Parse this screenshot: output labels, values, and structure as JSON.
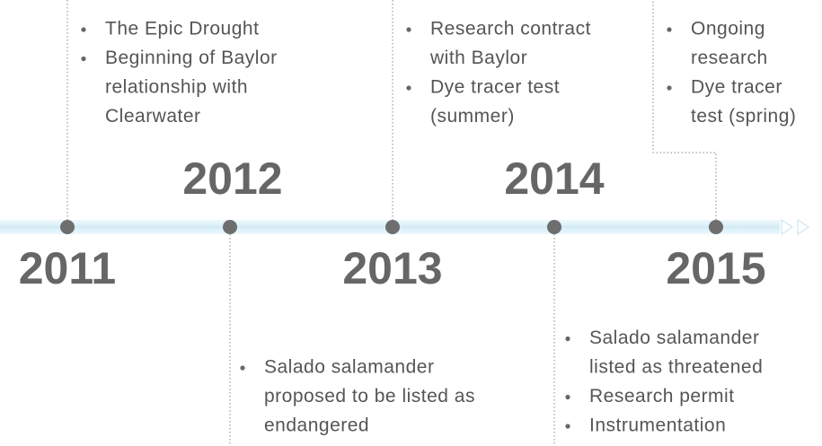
{
  "events": [
    {
      "year": "2011",
      "items": [
        [
          "The Epic Drought"
        ],
        [
          "Beginning of Baylor",
          "relationship with",
          "Clearwater"
        ]
      ]
    },
    {
      "year": "2012",
      "items": [
        [
          "Salado salamander",
          "proposed to be listed as",
          "endangered"
        ]
      ]
    },
    {
      "year": "2013",
      "items": [
        [
          "Research contract",
          "with Baylor"
        ],
        [
          "Dye tracer test",
          "(summer)"
        ]
      ]
    },
    {
      "year": "2014",
      "items": [
        [
          "Salado salamander",
          "listed as threatened"
        ],
        [
          "Research permit"
        ],
        [
          "Instrumentation"
        ]
      ]
    },
    {
      "year": "2015",
      "items": [
        [
          "Ongoing",
          "research"
        ],
        [
          "Dye tracer",
          "test (spring)"
        ]
      ]
    }
  ]
}
